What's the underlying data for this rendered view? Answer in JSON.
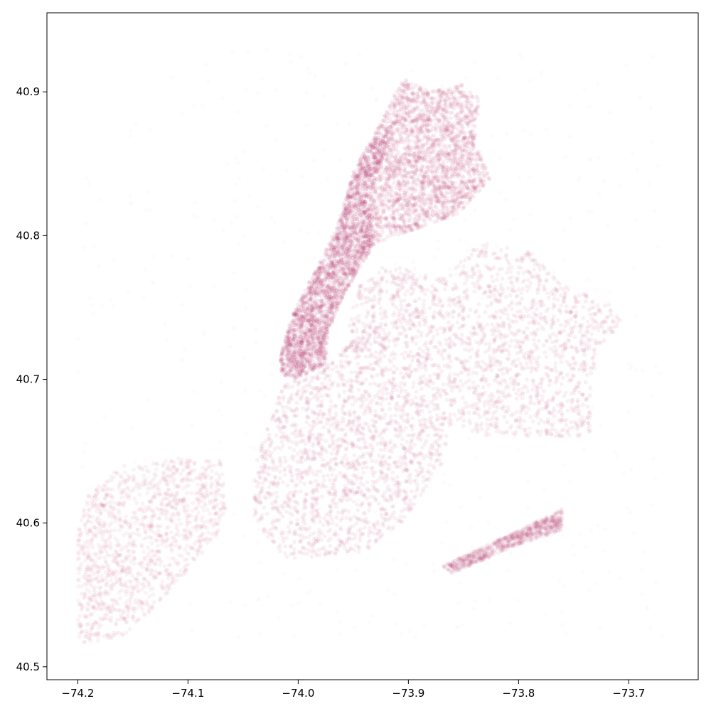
{
  "chart_data": {
    "type": "scatter",
    "title": "",
    "xlabel": "",
    "ylabel": "",
    "xlim": [
      -74.228,
      -73.637
    ],
    "ylim": [
      40.491,
      40.955
    ],
    "grid": false,
    "legend": "none",
    "x_ticks": [
      {
        "value": -74.2,
        "label": "−74.2"
      },
      {
        "value": -74.1,
        "label": "−74.1"
      },
      {
        "value": -74.0,
        "label": "−74.0"
      },
      {
        "value": -73.9,
        "label": "−73.9"
      },
      {
        "value": -73.8,
        "label": "−73.8"
      },
      {
        "value": -73.7,
        "label": "−73.7"
      }
    ],
    "y_ticks": [
      {
        "value": 40.5,
        "label": "40.5"
      },
      {
        "value": 40.6,
        "label": "40.6"
      },
      {
        "value": 40.7,
        "label": "40.7"
      },
      {
        "value": 40.8,
        "label": "40.8"
      },
      {
        "value": 40.9,
        "label": "40.9"
      }
    ],
    "marker_color": "#a3004a",
    "marker_alpha": 0.05,
    "density_regions": [
      {
        "polygon": [
          [
            -74.018,
            40.705
          ],
          [
            -74.005,
            40.7
          ],
          [
            -73.975,
            40.71
          ],
          [
            -73.972,
            40.735
          ],
          [
            -73.958,
            40.76
          ],
          [
            -73.942,
            40.78
          ],
          [
            -73.93,
            40.795
          ],
          [
            -73.935,
            40.815
          ],
          [
            -73.93,
            40.84
          ],
          [
            -73.913,
            40.875
          ],
          [
            -73.925,
            40.878
          ],
          [
            -73.95,
            40.845
          ],
          [
            -73.965,
            40.805
          ],
          [
            -73.985,
            40.775
          ],
          [
            -74.005,
            40.745
          ],
          [
            -74.015,
            40.72
          ]
        ],
        "weight": 6
      },
      {
        "polygon": [
          [
            -73.925,
            40.878
          ],
          [
            -73.905,
            40.91
          ],
          [
            -73.88,
            40.9
          ],
          [
            -73.85,
            40.905
          ],
          [
            -73.835,
            40.895
          ],
          [
            -73.84,
            40.865
          ],
          [
            -73.825,
            40.84
          ],
          [
            -73.855,
            40.815
          ],
          [
            -73.89,
            40.805
          ],
          [
            -73.93,
            40.795
          ],
          [
            -73.935,
            40.815
          ],
          [
            -73.93,
            40.84
          ],
          [
            -73.913,
            40.875
          ]
        ],
        "weight": 5
      },
      {
        "polygon": [
          [
            -74.04,
            40.64
          ],
          [
            -74.01,
            40.705
          ],
          [
            -73.98,
            40.705
          ],
          [
            -73.96,
            40.72
          ],
          [
            -73.935,
            40.74
          ],
          [
            -73.92,
            40.72
          ],
          [
            -73.88,
            40.69
          ],
          [
            -73.86,
            40.67
          ],
          [
            -73.87,
            40.64
          ],
          [
            -73.905,
            40.6
          ],
          [
            -73.94,
            40.58
          ],
          [
            -74.01,
            40.575
          ],
          [
            -74.04,
            40.6
          ]
        ],
        "weight": 4
      },
      {
        "polygon": [
          [
            -73.96,
            40.72
          ],
          [
            -73.945,
            40.765
          ],
          [
            -73.92,
            40.78
          ],
          [
            -73.87,
            40.77
          ],
          [
            -73.835,
            40.795
          ],
          [
            -73.79,
            40.79
          ],
          [
            -73.76,
            40.765
          ],
          [
            -73.72,
            40.755
          ],
          [
            -73.705,
            40.74
          ],
          [
            -73.73,
            40.72
          ],
          [
            -73.735,
            40.66
          ],
          [
            -73.78,
            40.66
          ],
          [
            -73.83,
            40.66
          ],
          [
            -73.86,
            40.67
          ],
          [
            -73.88,
            40.69
          ],
          [
            -73.92,
            40.72
          ]
        ],
        "weight": 4
      },
      {
        "polygon": [
          [
            -74.2,
            40.56
          ],
          [
            -74.2,
            40.515
          ],
          [
            -74.16,
            40.52
          ],
          [
            -74.125,
            40.545
          ],
          [
            -74.075,
            40.59
          ],
          [
            -74.065,
            40.61
          ],
          [
            -74.07,
            40.645
          ],
          [
            -74.11,
            40.645
          ],
          [
            -74.16,
            40.64
          ],
          [
            -74.19,
            40.62
          ],
          [
            -74.2,
            40.595
          ]
        ],
        "weight": 3
      },
      {
        "polygon": [
          [
            -73.87,
            40.57
          ],
          [
            -73.8,
            40.595
          ],
          [
            -73.76,
            40.61
          ],
          [
            -73.76,
            40.595
          ],
          [
            -73.8,
            40.585
          ],
          [
            -73.86,
            40.565
          ]
        ],
        "weight": 2
      }
    ]
  }
}
